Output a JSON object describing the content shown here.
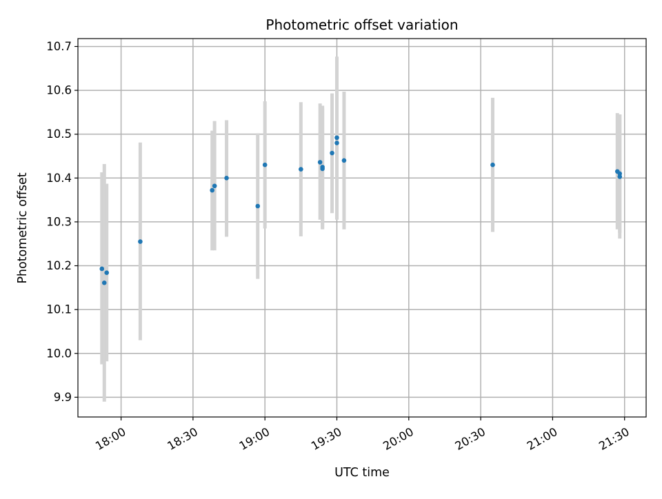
{
  "chart_data": {
    "type": "scatter",
    "title": "Photometric offset variation",
    "xlabel": "UTC time",
    "ylabel": "Photometric offset",
    "xlim": [
      "17:42",
      "21:39"
    ],
    "ylim": [
      9.855,
      10.718
    ],
    "grid": true,
    "x_ticks": [
      "18:00",
      "18:30",
      "19:00",
      "19:30",
      "20:00",
      "20:30",
      "21:00",
      "21:30"
    ],
    "y_ticks": [
      9.9,
      10.0,
      10.1,
      10.2,
      10.3,
      10.4,
      10.5,
      10.6,
      10.7
    ],
    "y_tick_labels": [
      "9.9",
      "10.0",
      "10.1",
      "10.2",
      "10.3",
      "10.4",
      "10.5",
      "10.6",
      "10.7"
    ],
    "point_color": "#1f77b4",
    "errorbar_color": "#d3d3d3",
    "points": [
      {
        "x": "17:52",
        "y": 10.193,
        "ylo": 9.975,
        "yhi": 10.413
      },
      {
        "x": "17:53",
        "y": 10.161,
        "ylo": 9.89,
        "yhi": 10.432
      },
      {
        "x": "17:54",
        "y": 10.184,
        "ylo": 9.982,
        "yhi": 10.387
      },
      {
        "x": "18:08",
        "y": 10.255,
        "ylo": 10.03,
        "yhi": 10.481
      },
      {
        "x": "18:38",
        "y": 10.372,
        "ylo": 10.235,
        "yhi": 10.508
      },
      {
        "x": "18:39",
        "y": 10.382,
        "ylo": 10.235,
        "yhi": 10.53
      },
      {
        "x": "18:44",
        "y": 10.4,
        "ylo": 10.266,
        "yhi": 10.532
      },
      {
        "x": "18:57",
        "y": 10.336,
        "ylo": 10.17,
        "yhi": 10.502
      },
      {
        "x": "19:00",
        "y": 10.43,
        "ylo": 10.285,
        "yhi": 10.575
      },
      {
        "x": "19:15",
        "y": 10.42,
        "ylo": 10.267,
        "yhi": 10.573
      },
      {
        "x": "19:23",
        "y": 10.436,
        "ylo": 10.305,
        "yhi": 10.57
      },
      {
        "x": "19:24",
        "y": 10.425,
        "ylo": 10.285,
        "yhi": 10.565
      },
      {
        "x": "19:24",
        "y": 10.421,
        "ylo": 10.283,
        "yhi": 10.56
      },
      {
        "x": "19:28",
        "y": 10.457,
        "ylo": 10.32,
        "yhi": 10.593
      },
      {
        "x": "19:30",
        "y": 10.492,
        "ylo": 10.31,
        "yhi": 10.677
      },
      {
        "x": "19:30",
        "y": 10.48,
        "ylo": 10.305,
        "yhi": 10.655
      },
      {
        "x": "19:33",
        "y": 10.44,
        "ylo": 10.283,
        "yhi": 10.597
      },
      {
        "x": "20:35",
        "y": 10.43,
        "ylo": 10.277,
        "yhi": 10.583
      },
      {
        "x": "21:27",
        "y": 10.415,
        "ylo": 10.283,
        "yhi": 10.548
      },
      {
        "x": "21:28",
        "y": 10.41,
        "ylo": 10.275,
        "yhi": 10.545
      },
      {
        "x": "21:28",
        "y": 10.403,
        "ylo": 10.262,
        "yhi": 10.545
      }
    ]
  }
}
